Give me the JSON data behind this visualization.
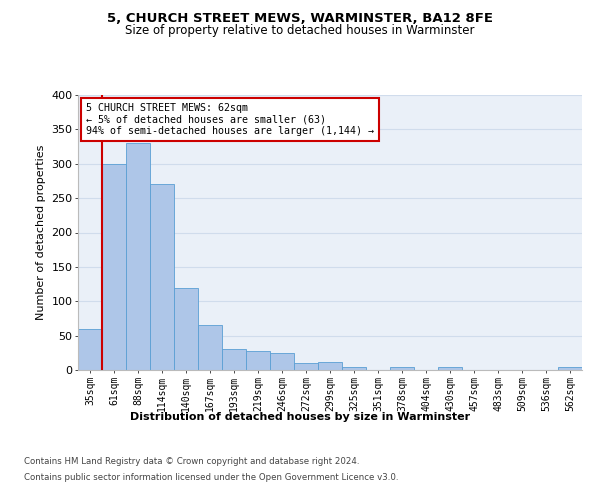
{
  "title": "5, CHURCH STREET MEWS, WARMINSTER, BA12 8FE",
  "subtitle": "Size of property relative to detached houses in Warminster",
  "xlabel": "Distribution of detached houses by size in Warminster",
  "ylabel": "Number of detached properties",
  "categories": [
    "35sqm",
    "61sqm",
    "88sqm",
    "114sqm",
    "140sqm",
    "167sqm",
    "193sqm",
    "219sqm",
    "246sqm",
    "272sqm",
    "299sqm",
    "325sqm",
    "351sqm",
    "378sqm",
    "404sqm",
    "430sqm",
    "457sqm",
    "483sqm",
    "509sqm",
    "536sqm",
    "562sqm"
  ],
  "bar_heights": [
    60,
    300,
    330,
    270,
    120,
    65,
    30,
    28,
    25,
    10,
    12,
    5,
    0,
    5,
    0,
    5,
    0,
    0,
    0,
    0,
    5
  ],
  "bar_color": "#aec6e8",
  "bar_edge_color": "#5a9fd4",
  "grid_color": "#d0dcec",
  "background_color": "#eaf0f8",
  "annotation_box_text": "5 CHURCH STREET MEWS: 62sqm\n← 5% of detached houses are smaller (63)\n94% of semi-detached houses are larger (1,144) →",
  "annotation_box_color": "#cc0000",
  "vline_x_index": 1,
  "vline_color": "#cc0000",
  "ylim": [
    0,
    400
  ],
  "yticks": [
    0,
    50,
    100,
    150,
    200,
    250,
    300,
    350,
    400
  ],
  "footer_line1": "Contains HM Land Registry data © Crown copyright and database right 2024.",
  "footer_line2": "Contains public sector information licensed under the Open Government Licence v3.0."
}
